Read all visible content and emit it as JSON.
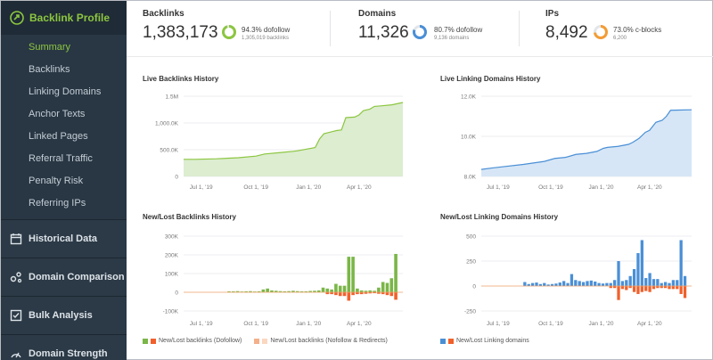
{
  "sidebar": {
    "header": "Backlink Profile",
    "items": [
      "Summary",
      "Backlinks",
      "Linking Domains",
      "Anchor Texts",
      "Linked Pages",
      "Referral Traffic",
      "Penalty Risk",
      "Referring IPs"
    ],
    "sections": [
      "Historical Data",
      "Domain Comparison",
      "Bulk Analysis",
      "Domain Strength"
    ]
  },
  "metrics": {
    "backlinks": {
      "label": "Backlinks",
      "value": "1,383,173",
      "pct": "94.3% dofollow",
      "sub": "1,305,019 backlinks",
      "fraction": 0.943,
      "color": "#8cc640"
    },
    "domains": {
      "label": "Domains",
      "value": "11,326",
      "pct": "80.7% dofollow",
      "sub": "9,136 domains",
      "fraction": 0.807,
      "color": "#4a8fd6"
    },
    "ips": {
      "label": "IPs",
      "value": "8,492",
      "pct": "73.0% c-blocks",
      "sub": "6,200",
      "fraction": 0.73,
      "color": "#f39c33"
    }
  },
  "charts": {
    "live_backlinks": "Live Backlinks History",
    "live_domains": "Live Linking Domains History",
    "newlost_backlinks": "New/Lost Backlinks History",
    "newlost_domains": "New/Lost Linking Domains History"
  },
  "legends": {
    "backlinks_dofollow": "New/Lost backlinks (Dofollow)",
    "backlinks_nofollow": "New/Lost backlinks (Nofollow & Redirects)",
    "domains": "New/Lost Linking domains"
  },
  "chart_data": [
    {
      "type": "area",
      "title": "Live Backlinks History",
      "x_ticks": [
        "Jul 1, '19",
        "Oct 1, '19",
        "Jan 1, '20",
        "Apr 1, '20"
      ],
      "y_ticks": [
        "0",
        "500.0K",
        "1,000.0K",
        "1.5M"
      ],
      "ylim": [
        0,
        1500000
      ],
      "color": "#8cc640",
      "x": [
        0,
        0.05,
        0.15,
        0.25,
        0.33,
        0.37,
        0.45,
        0.5,
        0.52,
        0.6,
        0.62,
        0.64,
        0.66,
        0.68,
        0.7,
        0.72,
        0.74,
        0.78,
        0.8,
        0.82,
        0.85,
        0.87,
        0.9,
        0.95,
        1.0
      ],
      "values": [
        320000,
        320000,
        330000,
        350000,
        380000,
        420000,
        450000,
        470000,
        480000,
        540000,
        700000,
        800000,
        820000,
        840000,
        860000,
        870000,
        1100000,
        1110000,
        1150000,
        1230000,
        1260000,
        1310000,
        1320000,
        1340000,
        1383173
      ]
    },
    {
      "type": "area",
      "title": "Live Linking Domains History",
      "x_ticks": [
        "Jul 1, '19",
        "Oct 1, '19",
        "Jan 1, '20",
        "Apr 1, '20"
      ],
      "y_ticks": [
        "8.0K",
        "10.0K",
        "12.0K"
      ],
      "ylim": [
        8000,
        12000
      ],
      "color": "#4a8fd6",
      "x": [
        0,
        0.05,
        0.1,
        0.2,
        0.3,
        0.35,
        0.4,
        0.45,
        0.5,
        0.55,
        0.58,
        0.6,
        0.65,
        0.7,
        0.72,
        0.75,
        0.78,
        0.8,
        0.83,
        0.86,
        0.88,
        0.9,
        1.0
      ],
      "values": [
        8350,
        8420,
        8480,
        8600,
        8750,
        8900,
        8950,
        9100,
        9150,
        9250,
        9400,
        9450,
        9500,
        9600,
        9700,
        9900,
        10200,
        10300,
        10700,
        10800,
        11000,
        11300,
        11326
      ]
    },
    {
      "type": "bar",
      "title": "New/Lost Backlinks History",
      "x_ticks": [
        "Jul 1, '19",
        "Oct 1, '19",
        "Jan 1, '20",
        "Apr 1, '20"
      ],
      "y_ticks": [
        "-100K",
        "0",
        "100K",
        "200K",
        "300K"
      ],
      "ylim": [
        -100000,
        300000
      ],
      "series": [
        {
          "name": "New/Lost backlinks (Dofollow)",
          "color": "#7ab648",
          "new": [
            5000,
            5000,
            6000,
            4000,
            5000,
            6000,
            4000,
            5000,
            15000,
            20000,
            10000,
            8000,
            6000,
            5000,
            6000,
            8000,
            6000,
            5000,
            5000,
            7000,
            8000,
            10000,
            25000,
            20000,
            15000,
            45000,
            35000,
            35000,
            190000,
            190000,
            20000,
            10000,
            8000,
            10000,
            8000,
            25000,
            55000,
            50000,
            75000,
            205000
          ],
          "lost": [
            0,
            0,
            0,
            0,
            0,
            0,
            0,
            0,
            0,
            0,
            0,
            0,
            0,
            0,
            0,
            0,
            0,
            0,
            0,
            0,
            0,
            0,
            0,
            -10000,
            -10000,
            -15000,
            -20000,
            -20000,
            -45000,
            -15000,
            -10000,
            -10000,
            -8000,
            -6000,
            -5000,
            -8000,
            -10000,
            -15000,
            -20000,
            -40000
          ]
        },
        {
          "name": "New/Lost backlinks (Nofollow & Redirects)",
          "color": "#f4b08a",
          "new": [
            2000,
            2000,
            2000,
            2000,
            2000,
            2000,
            2000,
            2000,
            3000,
            3000,
            3000,
            3000,
            3000,
            3000,
            3000,
            3000,
            3000,
            3000,
            3000,
            3000,
            3000,
            3000,
            4000,
            4000,
            4000,
            5000,
            5000,
            5000,
            5000,
            5000,
            5000,
            5000,
            5000,
            5000,
            5000,
            5000,
            5000,
            5000,
            5000,
            5000
          ]
        }
      ]
    },
    {
      "type": "bar",
      "title": "New/Lost Linking Domains History",
      "x_ticks": [
        "Jul 1, '19",
        "Oct 1, '19",
        "Jan 1, '20",
        "Apr 1, '20"
      ],
      "y_ticks": [
        "-250",
        "0",
        "250",
        "500"
      ],
      "ylim": [
        -250,
        500
      ],
      "series": [
        {
          "name": "New/Lost Linking domains",
          "color": "#4a8fd6",
          "new": [
            40,
            20,
            30,
            35,
            20,
            30,
            15,
            20,
            25,
            35,
            50,
            30,
            120,
            60,
            50,
            40,
            50,
            55,
            45,
            30,
            25,
            30,
            30,
            60,
            250,
            50,
            60,
            100,
            170,
            330,
            460,
            80,
            130,
            70,
            70,
            30,
            40,
            30,
            60,
            60,
            460,
            100
          ],
          "lost": [
            0,
            0,
            0,
            0,
            0,
            0,
            0,
            0,
            0,
            0,
            0,
            0,
            0,
            0,
            0,
            0,
            0,
            0,
            0,
            0,
            0,
            0,
            -20,
            -20,
            -140,
            -30,
            -40,
            -20,
            -60,
            -80,
            -60,
            -50,
            -60,
            -30,
            -20,
            -20,
            -20,
            -30,
            -30,
            -30,
            -80,
            -120
          ]
        }
      ]
    }
  ]
}
